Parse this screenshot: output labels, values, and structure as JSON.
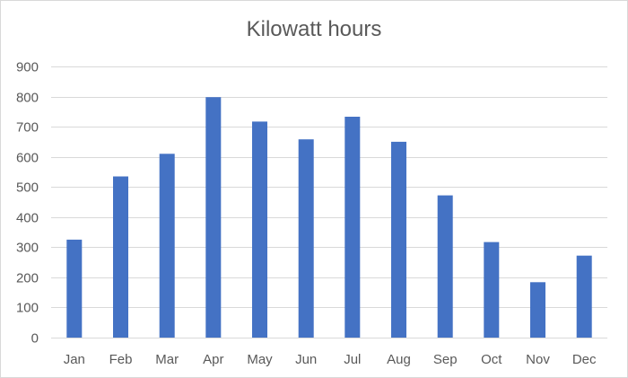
{
  "chart_data": {
    "type": "bar",
    "title": "Kilowatt hours",
    "xlabel": "",
    "ylabel": "",
    "categories": [
      "Jan",
      "Feb",
      "Mar",
      "Apr",
      "May",
      "Jun",
      "Jul",
      "Aug",
      "Sep",
      "Oct",
      "Nov",
      "Dec"
    ],
    "values": [
      325,
      535,
      610,
      798,
      717,
      658,
      733,
      650,
      472,
      317,
      184,
      272
    ],
    "ylim": [
      0,
      900
    ],
    "yticks": [
      "0",
      "100",
      "200",
      "300",
      "400",
      "500",
      "600",
      "700",
      "800",
      "900"
    ],
    "grid": true,
    "legend": "none",
    "bar_color": "#4472C4",
    "grid_color": "#d9d9d9",
    "text_color": "#595959"
  }
}
